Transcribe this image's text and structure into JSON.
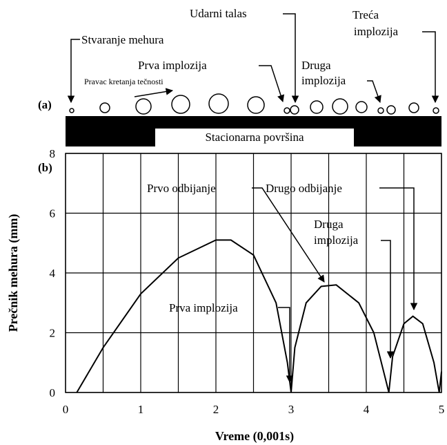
{
  "diagram": {
    "panel_label": "(a)",
    "labels": {
      "bubble_formation": "Stvaranje mehura",
      "first_implosion": "Prva implozija",
      "flow_direction": "Pravac kretanja tečnosti",
      "shock_wave": "Udarni talas",
      "second_implosion": [
        "Druga",
        "implozija"
      ],
      "third_implosion": [
        "Treća",
        "implozija"
      ],
      "surface": "Stacionarna površina"
    }
  },
  "chart_data": {
    "type": "line",
    "panel_label": "(b)",
    "x_label": "Vreme (0,001s)",
    "y_label": "Prečnik mehura (mm)",
    "x": [
      0.15,
      0.5,
      1.0,
      1.5,
      2.0,
      2.2,
      2.5,
      2.8,
      2.95,
      3.0,
      3.05,
      3.2,
      3.4,
      3.6,
      3.9,
      4.1,
      4.25,
      4.3,
      4.35,
      4.5,
      4.62,
      4.75,
      4.9,
      4.97,
      5.0
    ],
    "values": [
      0,
      1.5,
      3.3,
      4.5,
      5.1,
      5.1,
      4.6,
      3.0,
      1.0,
      0,
      1.5,
      3.0,
      3.55,
      3.6,
      3.0,
      2.0,
      0.5,
      0,
      1.2,
      2.3,
      2.55,
      2.3,
      1.0,
      0,
      0.7
    ],
    "color": "#000000",
    "xlim": [
      0,
      5
    ],
    "ylim": [
      0,
      8
    ],
    "xticks": [
      0,
      1,
      2,
      3,
      4,
      5
    ],
    "yticks": [
      0,
      2,
      4,
      6,
      8
    ],
    "grid": true,
    "annotations": {
      "first_rebound": "Prvo odbijanje",
      "second_rebound": "Drugo odbijanje",
      "second_implosion": [
        "Druga",
        "implozija"
      ],
      "first_implosion": "Prva implozija"
    }
  }
}
